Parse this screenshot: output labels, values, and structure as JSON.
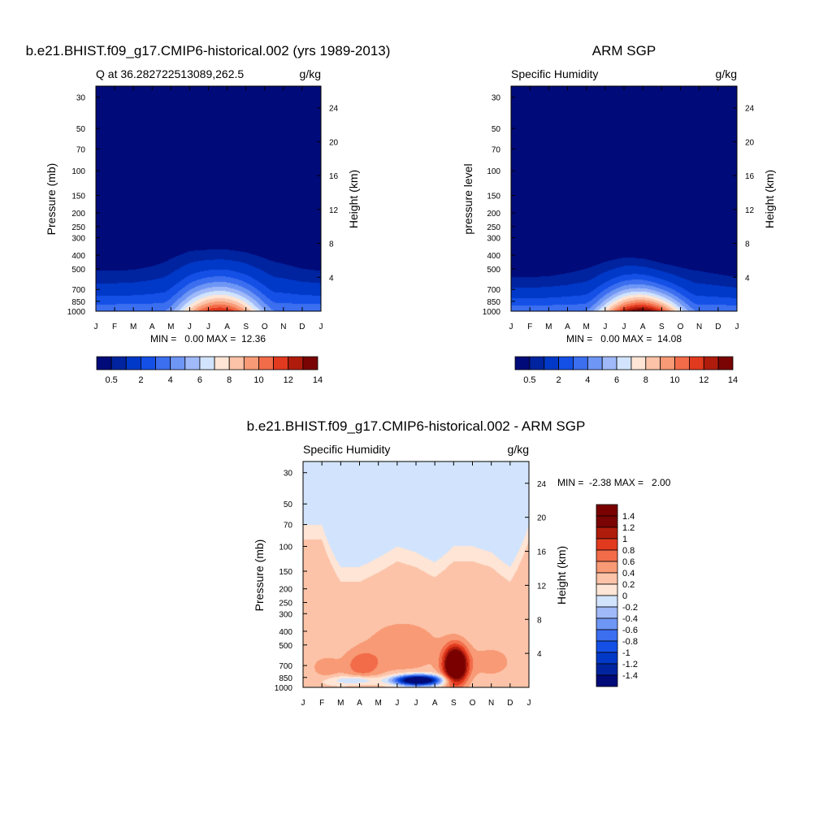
{
  "chart_data": [
    {
      "type": "heatmap",
      "title": "b.e21.BHIST.f09_g17.CMIP6-historical.002 (yrs 1989-2013)",
      "left_subtitle": "Q at 36.282722513089,262.5",
      "right_subtitle": "g/kg",
      "ylabel": "Pressure (mb)",
      "ylabel_right": "Height (km)",
      "x_ticks": [
        "J",
        "F",
        "M",
        "A",
        "M",
        "J",
        "J",
        "A",
        "S",
        "O",
        "N",
        "D",
        "J"
      ],
      "y_ticks": [
        30,
        50,
        70,
        100,
        150,
        200,
        250,
        300,
        400,
        500,
        700,
        850,
        1000
      ],
      "y_right_ticks": [
        24,
        20,
        16,
        12,
        8,
        4
      ],
      "ylim": [
        1000,
        25
      ],
      "stats": "MIN =   0.00 MAX =  12.36",
      "min": 0.0,
      "max": 12.36,
      "contour_levels": [
        0.5,
        1,
        2,
        3,
        4,
        5,
        6,
        7,
        8,
        9,
        10,
        11,
        12,
        13,
        14
      ],
      "colorbar_labels": [
        "0.5",
        "2",
        "4",
        "6",
        "8",
        "10",
        "12",
        "14"
      ],
      "colorbar_colors": [
        "#000a78",
        "#0024a0",
        "#0039c8",
        "#1450e6",
        "#3c6ef0",
        "#6e96f5",
        "#a0b9f9",
        "#d2e4fd",
        "#fee5d5",
        "#fcc3a8",
        "#f89a75",
        "#f26c4a",
        "#e23a1e",
        "#b01c0c",
        "#7a0403"
      ],
      "peak_month": 6.6,
      "top_1g_pressure": [
        440,
        440,
        430,
        400,
        350,
        320,
        320,
        320,
        330,
        350,
        380,
        420,
        440
      ],
      "surface_peak_value": 12.36
    },
    {
      "type": "heatmap",
      "title": "ARM SGP",
      "left_subtitle": "Specific Humidity",
      "right_subtitle": "g/kg",
      "ylabel": "pressure level",
      "ylabel_right": "Height (km)",
      "x_ticks": [
        "J",
        "F",
        "M",
        "A",
        "M",
        "J",
        "J",
        "A",
        "S",
        "O",
        "N",
        "D",
        "J"
      ],
      "y_ticks": [
        30,
        50,
        70,
        100,
        150,
        200,
        250,
        300,
        400,
        500,
        700,
        850,
        1000
      ],
      "y_right_ticks": [
        24,
        20,
        16,
        12,
        8,
        4
      ],
      "ylim": [
        1000,
        25
      ],
      "stats": "MIN =   0.00 MAX =  14.08",
      "min": 0.0,
      "max": 14.08,
      "contour_levels": [
        0.5,
        1,
        2,
        3,
        4,
        5,
        6,
        7,
        8,
        9,
        10,
        11,
        12,
        13,
        14
      ],
      "colorbar_labels": [
        "0.5",
        "2",
        "4",
        "6",
        "8",
        "10",
        "12",
        "14"
      ],
      "colorbar_colors": [
        "#000a78",
        "#0024a0",
        "#0039c8",
        "#1450e6",
        "#3c6ef0",
        "#6e96f5",
        "#a0b9f9",
        "#d2e4fd",
        "#fee5d5",
        "#fcc3a8",
        "#f89a75",
        "#f26c4a",
        "#e23a1e",
        "#b01c0c",
        "#7a0403"
      ],
      "peak_month": 6.9,
      "top_1g_pressure": [
        500,
        500,
        490,
        460,
        420,
        390,
        370,
        380,
        410,
        430,
        440,
        470,
        500
      ],
      "surface_peak_value": 14.08
    },
    {
      "type": "heatmap",
      "title": "b.e21.BHIST.f09_g17.CMIP6-historical.002 - ARM SGP",
      "left_subtitle": "Specific Humidity",
      "right_subtitle": "g/kg",
      "ylabel": "Pressure (mb)",
      "ylabel_right": "Height (km)",
      "x_ticks": [
        "J",
        "F",
        "M",
        "A",
        "M",
        "J",
        "J",
        "A",
        "S",
        "O",
        "N",
        "D",
        "J"
      ],
      "y_ticks": [
        30,
        50,
        70,
        100,
        150,
        200,
        250,
        300,
        400,
        500,
        700,
        850,
        1000
      ],
      "y_right_ticks": [
        24,
        20,
        16,
        12,
        8,
        4
      ],
      "ylim": [
        1000,
        25
      ],
      "stats": "MIN =  -2.38 MAX =   2.00",
      "min": -2.38,
      "max": 2.0,
      "contour_levels": [
        -1.4,
        -1.2,
        -1,
        -0.8,
        -0.6,
        -0.4,
        -0.2,
        0,
        0.2,
        0.4,
        0.6,
        0.8,
        1,
        1.2,
        1.4
      ],
      "colorbar_labels": [
        "1.4",
        "1.2",
        "1",
        "0.8",
        "0.6",
        "0.4",
        "0.2",
        "0",
        "-0.2",
        "-0.4",
        "-0.6",
        "-0.8",
        "-1",
        "-1.2",
        "-1.4"
      ],
      "colorbar_colors": [
        "#000a78",
        "#0024a0",
        "#0039c8",
        "#1450e6",
        "#3c6ef0",
        "#6e96f5",
        "#a0b9f9",
        "#d2e4fd",
        "#fee5d5",
        "#fcc3a8",
        "#f89a75",
        "#f26c4a",
        "#e23a1e",
        "#b01c0c",
        "#7a0403",
        "#7a0000"
      ],
      "zero_line_pressure": [
        70,
        70,
        140,
        140,
        120,
        100,
        110,
        130,
        100,
        100,
        110,
        140,
        70
      ],
      "features": [
        {
          "month": 8.1,
          "pressure": 700,
          "value": 2.0
        },
        {
          "month": 6.1,
          "pressure": 880,
          "value": -2.38
        },
        {
          "month": 2.9,
          "pressure": 700,
          "value": 0.7
        },
        {
          "month": 5.3,
          "pressure": 520,
          "value": 0.6
        }
      ]
    }
  ]
}
